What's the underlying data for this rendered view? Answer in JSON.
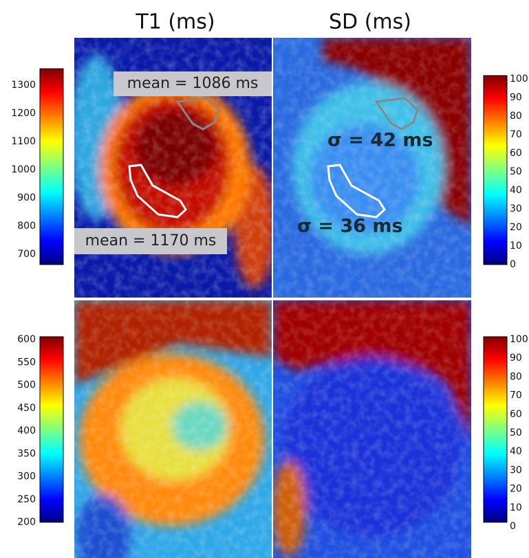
{
  "columns": [
    "T1 (ms)",
    "SD (ms)"
  ],
  "colorbars": [
    {
      "ticks": [
        1300,
        1200,
        1100,
        1000,
        900,
        800,
        700
      ]
    },
    {
      "ticks": [
        100,
        90,
        80,
        70,
        60,
        50,
        40,
        30,
        20,
        10,
        0
      ]
    },
    {
      "ticks": [
        600,
        550,
        500,
        450,
        400,
        350,
        300,
        250,
        200
      ]
    },
    {
      "ticks": [
        100,
        90,
        80,
        70,
        60,
        50,
        40,
        30,
        20,
        10,
        0
      ]
    }
  ],
  "annotations": [
    "mean = 1086 ms",
    "mean = 1170 ms",
    "σ = 42 ms",
    "σ = 36 ms"
  ]
}
